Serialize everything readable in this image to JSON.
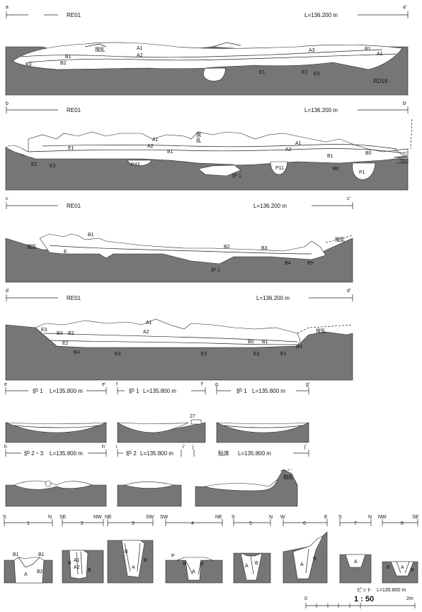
{
  "sections": {
    "a": {
      "left": "a",
      "right": "a'",
      "ref": "RE01",
      "level": "L=136.200 m",
      "layers": [
        "撹乱",
        "A1",
        "A2",
        "A3",
        "B1",
        "B2",
        "B3",
        "A1",
        "B1",
        "E1",
        "E2",
        "E3",
        "RD19"
      ]
    },
    "b": {
      "left": "b",
      "right": "b'",
      "ref": "RE01",
      "level": "L=136.200 m",
      "layers": [
        "撹",
        "乱",
        "A1",
        "A2",
        "A1",
        "A2",
        "B1",
        "E1",
        "E2",
        "E3",
        "P43",
        "炉 1",
        "P11",
        "B0",
        "B0",
        "B1",
        "P1",
        "C",
        "D1"
      ]
    },
    "c": {
      "left": "c",
      "right": "c'",
      "ref": "RE01",
      "level": "L=136.200 m",
      "layers": [
        "撹乱",
        "B1",
        "E",
        "B2",
        "B3",
        "B4",
        "B5",
        "撹乱",
        "炉 1"
      ]
    },
    "d": {
      "left": "d",
      "right": "d'",
      "ref": "RE01",
      "level": "L=136.200 m",
      "layers": [
        "A1",
        "A2",
        "E3",
        "B3",
        "B2",
        "E2",
        "B4",
        "E3",
        "E2",
        "B0",
        "E3",
        "E1",
        "B4",
        "B1",
        "撹乱"
      ]
    }
  },
  "hearths": [
    {
      "left": "e",
      "right": "e'",
      "name": "炉 1",
      "level": "L=135.800 m"
    },
    {
      "left": "f",
      "right": "f'",
      "name": "炉 1",
      "level": "L=135.800 m",
      "extra": "27"
    },
    {
      "left": "g",
      "right": "g'",
      "name": "炉 1",
      "level": "L=135.800 m"
    },
    {
      "left": "h",
      "right": "h'",
      "name": "炉 2・3",
      "level": "L=135.800 m"
    },
    {
      "left": "i",
      "right": "i'",
      "name": "炉 2",
      "level": "L=135.800 m"
    },
    {
      "left": "j",
      "right": "j'",
      "name": "貼床",
      "level": "L=135.800 m",
      "extra": "撹乱"
    }
  ],
  "pits": {
    "header": [
      {
        "dir": "S",
        "num": "",
        "dir2": ""
      },
      {
        "dir": "1",
        "num": "",
        "dir2": ""
      }
    ],
    "items": [
      {
        "l": "S",
        "n": "1",
        "r": "N",
        "labels": [
          "B1",
          "B1",
          "A",
          "B2"
        ]
      },
      {
        "l": "SE",
        "n": "2",
        "r": "NW",
        "labels": [
          "A1",
          "A2",
          "B",
          "B"
        ]
      },
      {
        "l": "NE",
        "n": "3",
        "r": "SW",
        "labels": [
          "B",
          "A",
          "B"
        ]
      },
      {
        "l": "SW",
        "n": "4",
        "r": "NE",
        "labels": [
          "P",
          "B",
          "A",
          "B"
        ]
      },
      {
        "l": "S",
        "n": "5",
        "r": "N",
        "labels": [
          "A",
          "B"
        ]
      },
      {
        "l": "W",
        "n": "6",
        "r": "E",
        "labels": [
          "A",
          "B"
        ]
      },
      {
        "l": "S",
        "n": "7",
        "r": "N",
        "labels": [
          "A"
        ]
      },
      {
        "l": "NW",
        "n": "8",
        "r": "SE",
        "labels": [
          "B",
          "A",
          "B"
        ]
      }
    ],
    "level": "ピット　L=135.800 m"
  },
  "scale": {
    "ratio": "1 : 50",
    "zero": "0",
    "max": "2m"
  }
}
